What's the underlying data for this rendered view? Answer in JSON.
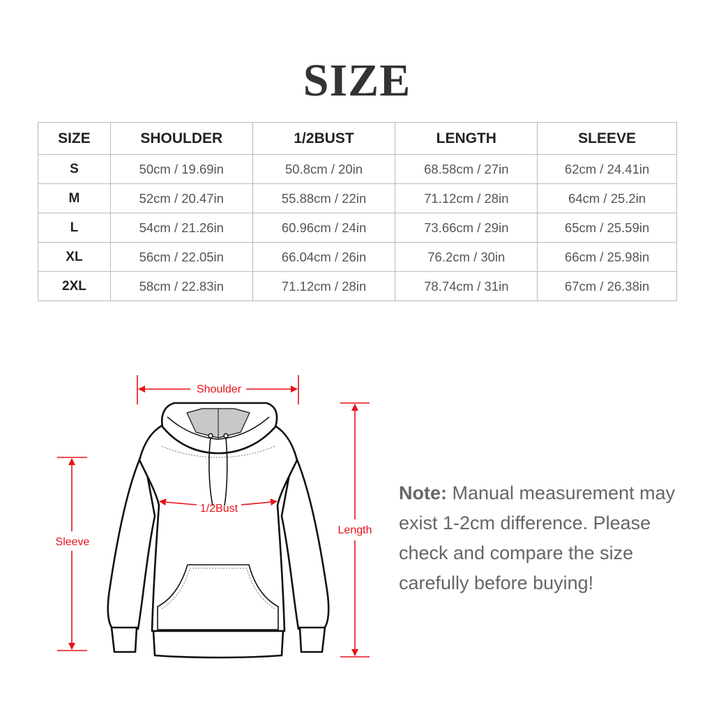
{
  "title": "SIZE",
  "table": {
    "headers": [
      "SIZE",
      "SHOULDER",
      "1/2BUST",
      "LENGTH",
      "SLEEVE"
    ],
    "rows": [
      [
        "S",
        "50cm / 19.69in",
        "50.8cm / 20in",
        "68.58cm / 27in",
        "62cm / 24.41in"
      ],
      [
        "M",
        "52cm / 20.47in",
        "55.88cm / 22in",
        "71.12cm / 28in",
        "64cm / 25.2in"
      ],
      [
        "L",
        "54cm / 21.26in",
        "60.96cm / 24in",
        "73.66cm / 29in",
        "65cm / 25.59in"
      ],
      [
        "XL",
        "56cm / 22.05in",
        "66.04cm / 26in",
        "76.2cm / 30in",
        "66cm / 25.98in"
      ],
      [
        "2XL",
        "58cm / 22.83in",
        "71.12cm / 28in",
        "78.74cm / 31in",
        "67cm / 26.38in"
      ]
    ]
  },
  "diagram": {
    "labels": {
      "shoulder": "Shoulder",
      "bust": "1/2Bust",
      "length": "Length",
      "sleeve": "Sleeve"
    },
    "accent_color": "#e8121b"
  },
  "note": {
    "label": "Note:",
    "text": " Manual measurement may exist 1-2cm difference. Please check and compare the size carefully before buying!"
  }
}
